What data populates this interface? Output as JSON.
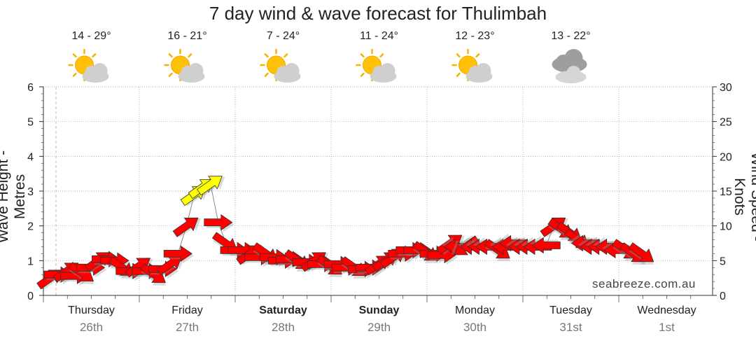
{
  "chart_data": {
    "type": "line",
    "title": "7 day wind & wave forecast for Thulimbah",
    "watermark": "seabreeze.com.au",
    "ylabel": "Wave Height - Metres",
    "y2label": "Wind Speed - Knots",
    "ylim": [
      0,
      6
    ],
    "y2lim": [
      0,
      30
    ],
    "yticks": [
      "0",
      "1",
      "2",
      "3",
      "4",
      "5",
      "6"
    ],
    "y2ticks": [
      "0",
      "5",
      "10",
      "15",
      "20",
      "25",
      "30"
    ],
    "grid": true,
    "days": [
      {
        "day": "Thursday",
        "date": "26th",
        "bold": false,
        "temp": "14 - 29°",
        "icon": "sun-cloud-icon"
      },
      {
        "day": "Friday",
        "date": "27th",
        "bold": false,
        "temp": "16 - 21°",
        "icon": "sun-cloud-icon"
      },
      {
        "day": "Saturday",
        "date": "28th",
        "bold": true,
        "temp": "7 - 24°",
        "icon": "sun-cloud-icon"
      },
      {
        "day": "Sunday",
        "date": "29th",
        "bold": true,
        "temp": "11 - 24°",
        "icon": "sun-cloud-icon"
      },
      {
        "day": "Monday",
        "date": "30th",
        "bold": false,
        "temp": "12 - 23°",
        "icon": "sun-cloud-icon"
      },
      {
        "day": "Tuesday",
        "date": "31st",
        "bold": false,
        "temp": "13 - 22°",
        "icon": "cloud-icon"
      },
      {
        "day": "Wednesday",
        "date": "1st",
        "bold": false,
        "temp": "",
        "icon": ""
      }
    ],
    "series": [
      {
        "type": "arrows",
        "unit": "knots",
        "x_days": [
          0.0,
          0.08,
          0.17,
          0.25,
          0.33,
          0.42,
          0.5,
          0.58,
          0.67,
          0.75,
          0.83,
          0.92,
          1.0,
          1.08,
          1.17,
          1.25,
          1.33,
          1.42,
          1.5,
          1.58,
          1.67,
          1.75,
          1.83,
          1.92,
          2.0,
          2.08,
          2.17,
          2.25,
          2.33,
          2.42,
          2.5,
          2.58,
          2.67,
          2.75,
          2.83,
          2.92,
          3.0,
          3.08,
          3.17,
          3.25,
          3.33,
          3.42,
          3.5,
          3.58,
          3.67,
          3.75,
          3.83,
          3.92,
          4.0,
          4.08,
          4.17,
          4.25,
          4.33,
          4.42,
          4.5,
          4.58,
          4.67,
          4.75,
          4.83,
          4.92,
          5.0,
          5.08,
          5.17,
          5.25,
          5.33,
          5.42,
          5.5,
          5.58,
          5.67,
          5.75,
          5.83,
          5.92,
          6.0,
          6.08,
          6.17
        ],
        "values": [
          2.5,
          3.0,
          3.5,
          2.8,
          3.2,
          4.0,
          5.0,
          5.2,
          5.0,
          4.0,
          3.5,
          4.2,
          3.5,
          3.0,
          3.8,
          4.5,
          6.0,
          10.0,
          14.5,
          15.5,
          16.0,
          10.5,
          7.5,
          6.5,
          6.5,
          6.0,
          5.5,
          6.0,
          5.5,
          5.0,
          5.2,
          5.0,
          4.8,
          5.0,
          4.5,
          4.2,
          4.5,
          4.0,
          4.0,
          3.8,
          4.0,
          4.5,
          5.0,
          5.5,
          6.0,
          6.5,
          6.5,
          6.2,
          6.0,
          5.8,
          7.5,
          7.0,
          7.0,
          7.0,
          7.0,
          7.0,
          6.5,
          7.0,
          7.5,
          7.0,
          7.0,
          7.0,
          7.2,
          10.0,
          9.5,
          9.0,
          8.0,
          7.5,
          7.0,
          7.0,
          7.0,
          6.5,
          6.5,
          6.0,
          6.0
        ],
        "direction": [
          "NE",
          "E",
          "NE",
          "E",
          "SE",
          "E",
          "NE",
          "E",
          "E",
          "SE",
          "E",
          "NE",
          "E",
          "SE",
          "E",
          "NE",
          "E",
          "NE",
          "NE",
          "NE",
          "NE",
          "E",
          "SE",
          "E",
          "E",
          "NE",
          "E",
          "SE",
          "E",
          "E",
          "E",
          "SE",
          "E",
          "NE",
          "E",
          "SE",
          "E",
          "E",
          "SE",
          "E",
          "E",
          "NE",
          "NE",
          "NE",
          "E",
          "E",
          "E",
          "SE",
          "E",
          "E",
          "NE",
          "W",
          "SW",
          "W",
          "W",
          "W",
          "SE",
          "W",
          "W",
          "W",
          "W",
          "W",
          "W",
          "NE",
          "SE",
          "SE",
          "SE",
          "W",
          "W",
          "W",
          "W",
          "W",
          "SE",
          "SE",
          "SE"
        ]
      }
    ]
  }
}
